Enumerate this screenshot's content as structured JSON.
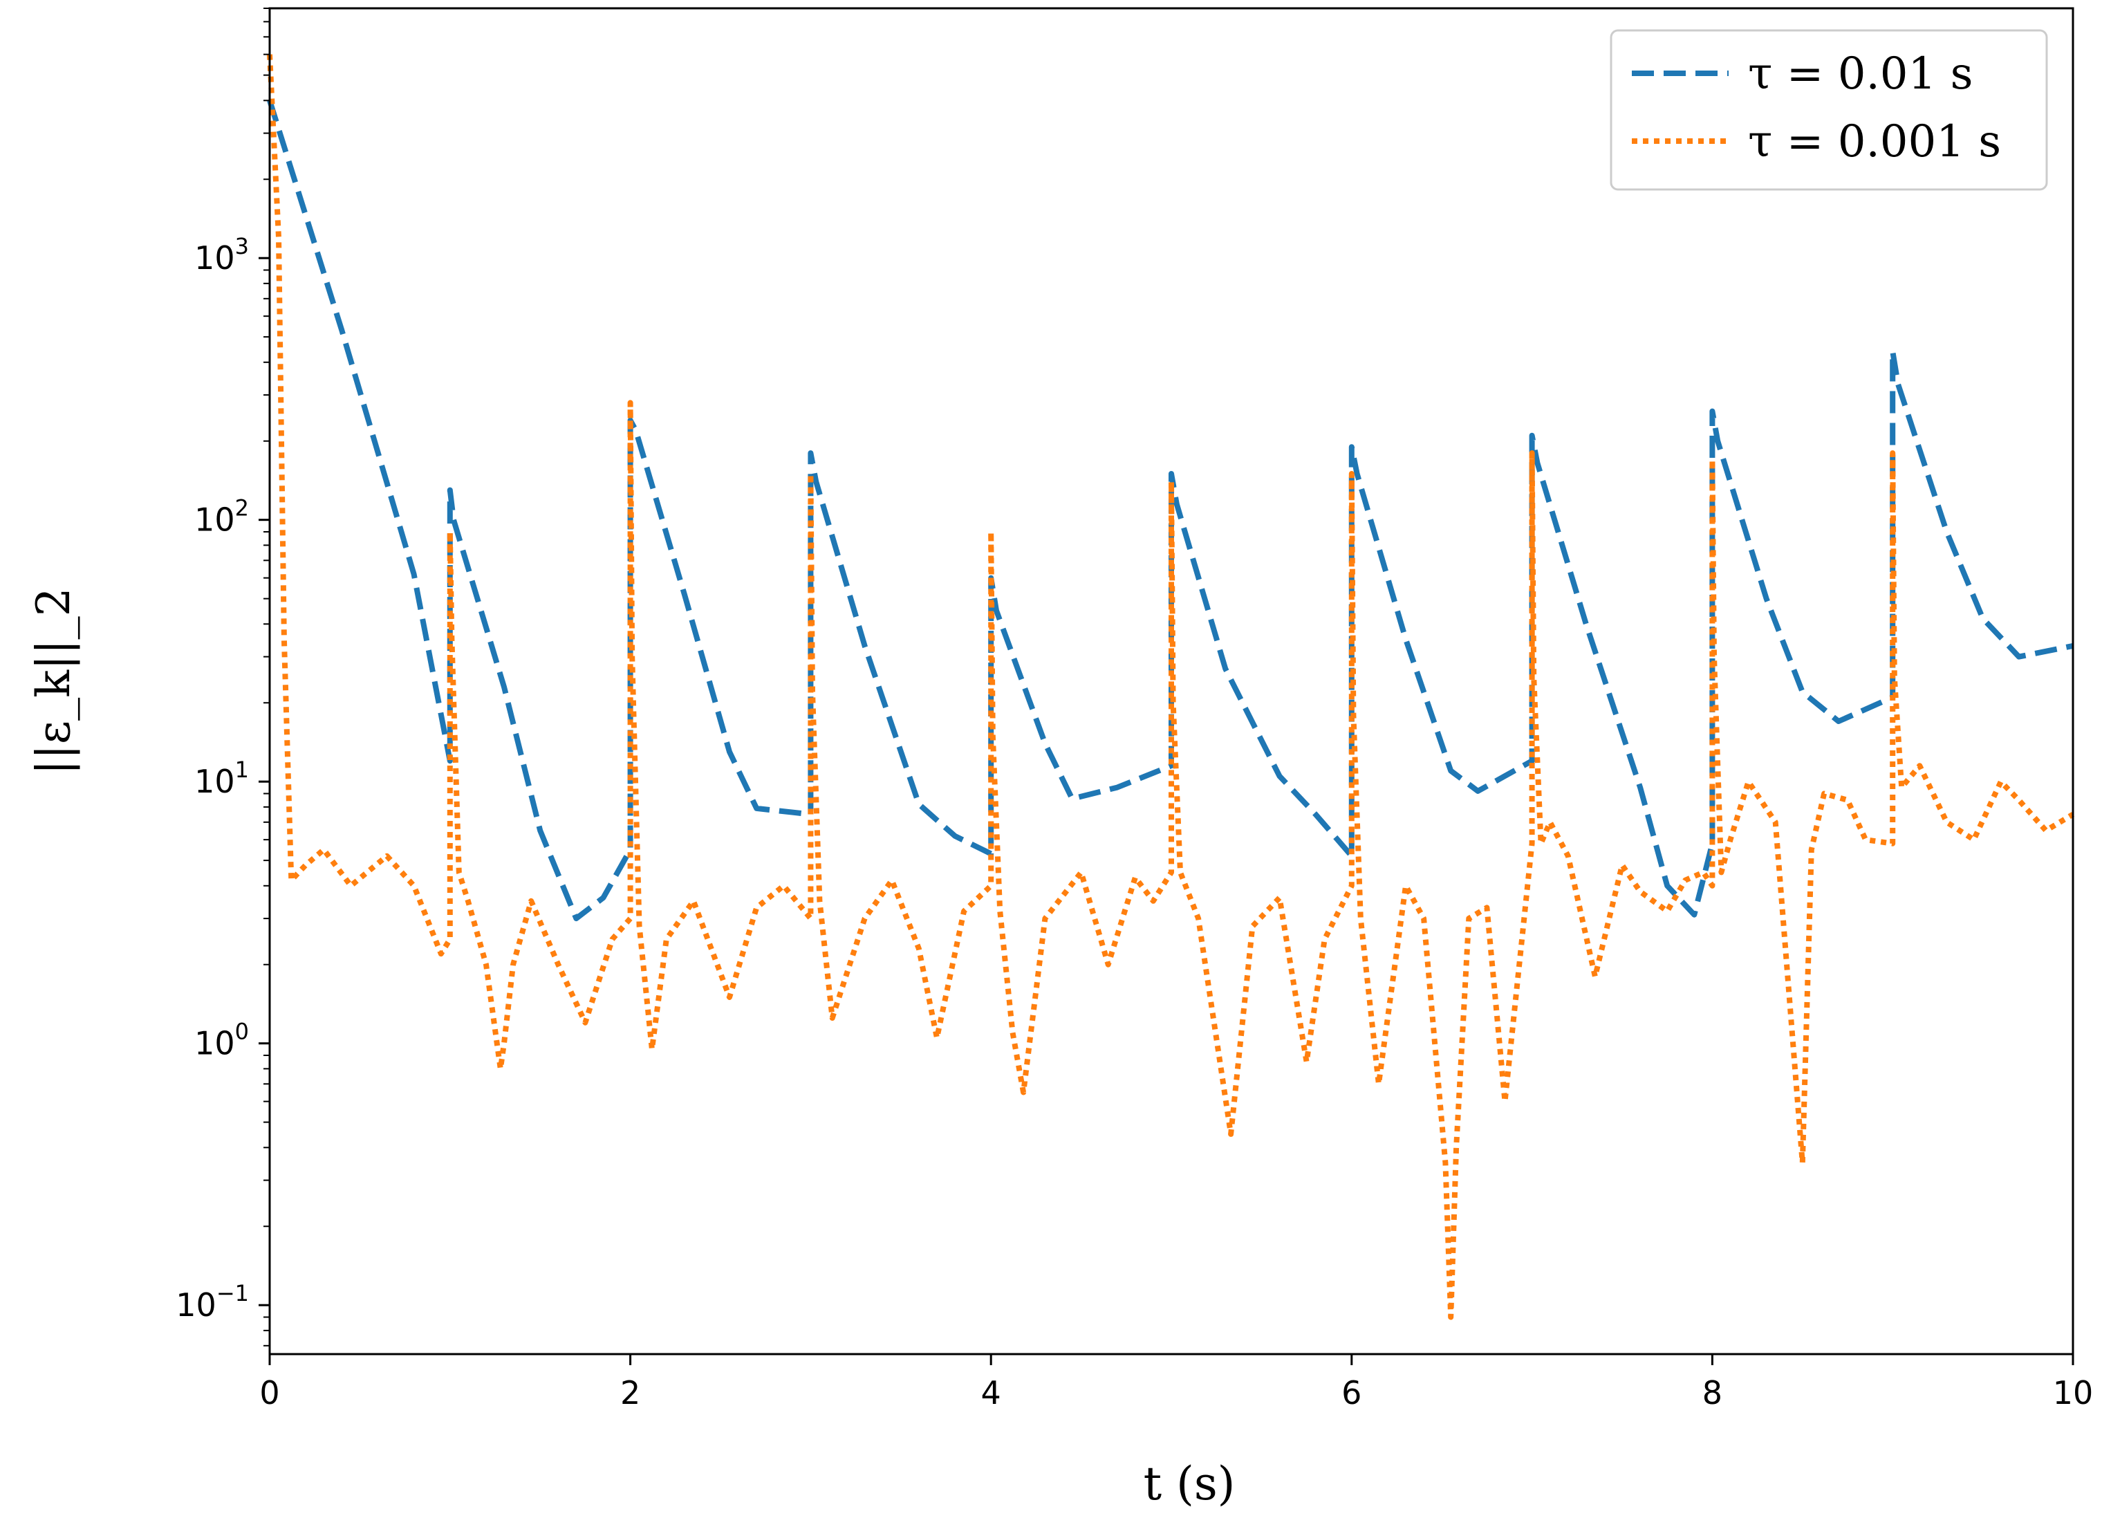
{
  "chart_data": {
    "type": "line",
    "title": "",
    "xlabel": "t (s)",
    "ylabel": "||ε_k||_2",
    "xlim": [
      0,
      10
    ],
    "ylim": [
      0.065,
      9000
    ],
    "y_scale": "log",
    "grid": false,
    "legend_position": "top-right",
    "x_ticks": [
      0,
      2,
      4,
      6,
      8,
      10
    ],
    "x_tick_labels": [
      "0",
      "2",
      "4",
      "6",
      "8",
      "10"
    ],
    "y_ticks": [
      0.1,
      1,
      10,
      100,
      1000
    ],
    "y_tick_labels": [
      {
        "base": "10",
        "exp": "−1"
      },
      {
        "base": "10",
        "exp": "0"
      },
      {
        "base": "10",
        "exp": "1"
      },
      {
        "base": "10",
        "exp": "2"
      },
      {
        "base": "10",
        "exp": "3"
      }
    ],
    "series": [
      {
        "name": "τ = 0.01 s",
        "color": "#1f77b4",
        "style": "dashed",
        "x": [
          0,
          0.4,
          0.8,
          1.0,
          1.0,
          1.02,
          1.3,
          1.5,
          1.7,
          1.85,
          2.0,
          2.0,
          2.03,
          2.3,
          2.55,
          2.7,
          3.0,
          3.0,
          3.03,
          3.3,
          3.6,
          3.8,
          4.0,
          4.0,
          4.03,
          4.3,
          4.45,
          4.7,
          5.0,
          5.0,
          5.03,
          5.3,
          5.6,
          5.8,
          6.0,
          6.0,
          6.03,
          6.3,
          6.55,
          6.7,
          7.0,
          7.0,
          7.03,
          7.3,
          7.6,
          7.75,
          7.9,
          8.0,
          8.0,
          8.03,
          8.3,
          8.5,
          8.7,
          9.0,
          9.0,
          9.03,
          9.3,
          9.5,
          9.7,
          10.0
        ],
        "y": [
          4000,
          530,
          62,
          12,
          130,
          100,
          23,
          6.5,
          3.0,
          3.6,
          5.5,
          240,
          220,
          52,
          13,
          7.9,
          7.5,
          180,
          140,
          33,
          8.2,
          6.2,
          5.3,
          60,
          45,
          14,
          8.6,
          9.5,
          11.5,
          150,
          115,
          27,
          10.5,
          7.5,
          5.2,
          190,
          150,
          35,
          11,
          9.2,
          12,
          210,
          165,
          40,
          9.5,
          4.0,
          3.1,
          5.8,
          260,
          200,
          50,
          22,
          17,
          21,
          440,
          330,
          90,
          42,
          30,
          33
        ]
      },
      {
        "name": "τ = 0.001 s",
        "color": "#ff7f0e",
        "style": "dotted",
        "x": [
          0,
          0.05,
          0.08,
          0.12,
          0.2,
          0.3,
          0.45,
          0.65,
          0.8,
          0.95,
          1.0,
          1.0,
          1.01,
          1.05,
          1.1,
          1.2,
          1.28,
          1.3,
          1.35,
          1.45,
          1.6,
          1.75,
          1.9,
          2.0,
          2.0,
          2.01,
          2.05,
          2.12,
          2.2,
          2.35,
          2.55,
          2.7,
          2.85,
          3.0,
          3.0,
          3.01,
          3.05,
          3.12,
          3.3,
          3.45,
          3.6,
          3.7,
          3.85,
          4.0,
          4.0,
          4.01,
          4.05,
          4.12,
          4.18,
          4.3,
          4.5,
          4.65,
          4.8,
          4.9,
          5.0,
          5.0,
          5.01,
          5.05,
          5.15,
          5.33,
          5.45,
          5.6,
          5.75,
          5.85,
          6.0,
          6.0,
          6.01,
          6.05,
          6.15,
          6.3,
          6.4,
          6.52,
          6.55,
          6.58,
          6.65,
          6.75,
          6.85,
          7.0,
          7.0,
          7.01,
          7.05,
          7.1,
          7.2,
          7.35,
          7.5,
          7.6,
          7.75,
          7.85,
          7.95,
          8.0,
          8.0,
          8.01,
          8.05,
          8.1,
          8.2,
          8.35,
          8.5,
          8.55,
          8.62,
          8.75,
          8.85,
          9.0,
          9.0,
          9.01,
          9.05,
          9.15,
          9.3,
          9.45,
          9.6,
          9.7,
          9.85,
          10.0
        ],
        "y": [
          6000,
          1200,
          35,
          4.2,
          4.8,
          5.5,
          4.0,
          5.2,
          4.0,
          2.2,
          2.5,
          90,
          35,
          4.5,
          3.5,
          2.0,
          0.8,
          1.0,
          2.0,
          3.5,
          2.0,
          1.2,
          2.5,
          3.0,
          280,
          30,
          2.8,
          0.95,
          2.5,
          3.5,
          1.5,
          3.3,
          4.0,
          3.0,
          150,
          22,
          3.5,
          1.25,
          3.0,
          4.2,
          2.3,
          1.05,
          3.2,
          4.0,
          90,
          15,
          3.2,
          1.1,
          0.65,
          3.0,
          4.5,
          2.0,
          4.3,
          3.5,
          4.5,
          140,
          20,
          4.5,
          3.0,
          0.45,
          2.8,
          3.6,
          0.85,
          2.5,
          4.0,
          150,
          18,
          3.0,
          0.7,
          4.0,
          3.0,
          0.35,
          0.09,
          0.4,
          3.0,
          3.3,
          0.6,
          5.8,
          180,
          25,
          5.8,
          7.0,
          5.2,
          1.8,
          4.8,
          3.8,
          3.2,
          4.2,
          4.5,
          4.0,
          170,
          30,
          4.5,
          6.0,
          10.0,
          7.0,
          0.35,
          5.5,
          9.0,
          8.5,
          6.0,
          5.8,
          180,
          25,
          9.5,
          11.5,
          7.0,
          6.0,
          10.0,
          8.5,
          6.5,
          7.5
        ]
      }
    ]
  }
}
